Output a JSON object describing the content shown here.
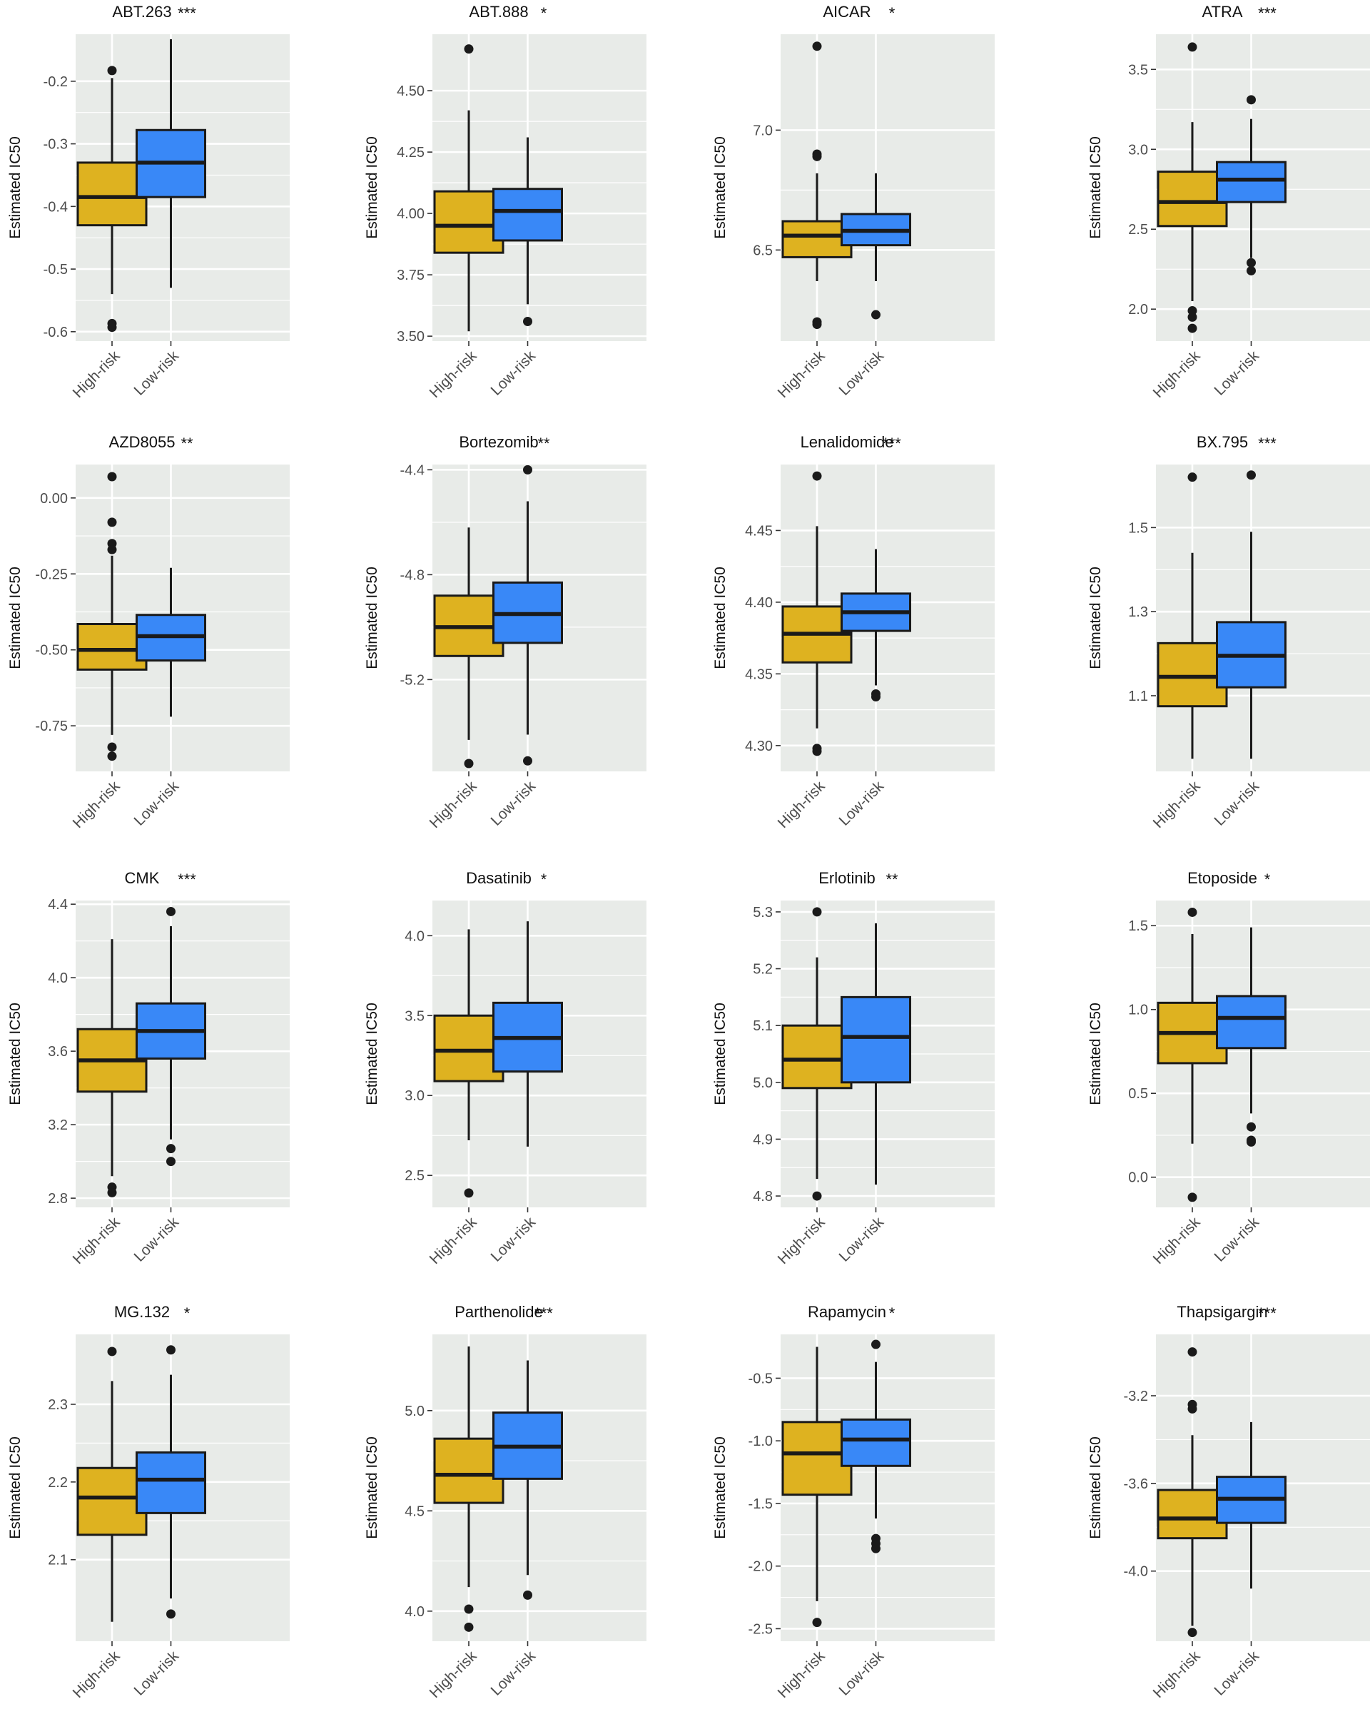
{
  "colors": {
    "high_risk": "#DEB220",
    "low_risk": "#3988F7",
    "panel_bg": "#E8EBE8",
    "grid": "#FFFFFF",
    "ink": "#1A1A1A"
  },
  "chart_data": [
    {
      "type": "box",
      "title": "ABT.263",
      "significance": "***",
      "ylabel": "Estimated IC50",
      "yticks": [
        "-0.2",
        "-0.3",
        "-0.4",
        "-0.5",
        "-0.6"
      ],
      "ylim": [
        -0.615,
        -0.125
      ],
      "categories": [
        "High-risk",
        "Low-risk"
      ],
      "boxes": [
        {
          "name": "High-risk",
          "whisker_low": -0.54,
          "q1": -0.43,
          "median": -0.385,
          "q3": -0.33,
          "whisker_high": -0.195,
          "outliers": [
            -0.183,
            -0.587,
            -0.593
          ]
        },
        {
          "name": "Low-risk",
          "whisker_low": -0.53,
          "q1": -0.385,
          "median": -0.33,
          "q3": -0.278,
          "whisker_high": -0.133,
          "outliers": []
        }
      ]
    },
    {
      "type": "box",
      "title": "ABT.888",
      "significance": "*",
      "ylabel": "Estimated IC50",
      "yticks": [
        "4.50",
        "4.25",
        "4.00",
        "3.75",
        "3.50"
      ],
      "ylim": [
        3.48,
        4.73
      ],
      "categories": [
        "High-risk",
        "Low-risk"
      ],
      "boxes": [
        {
          "name": "High-risk",
          "whisker_low": 3.52,
          "q1": 3.84,
          "median": 3.95,
          "q3": 4.09,
          "whisker_high": 4.42,
          "outliers": [
            4.67
          ]
        },
        {
          "name": "Low-risk",
          "whisker_low": 3.63,
          "q1": 3.89,
          "median": 4.01,
          "q3": 4.1,
          "whisker_high": 4.31,
          "outliers": [
            3.56
          ]
        }
      ]
    },
    {
      "type": "box",
      "title": "AICAR",
      "significance": "*",
      "ylabel": "Estimated IC50",
      "yticks": [
        "7.0",
        "6.5"
      ],
      "ylim": [
        6.12,
        7.4
      ],
      "categories": [
        "High-risk",
        "Low-risk"
      ],
      "boxes": [
        {
          "name": "High-risk",
          "whisker_low": 6.37,
          "q1": 6.47,
          "median": 6.56,
          "q3": 6.62,
          "whisker_high": 6.82,
          "outliers": [
            7.35,
            6.9,
            6.89,
            6.2,
            6.19
          ]
        },
        {
          "name": "Low-risk",
          "whisker_low": 6.37,
          "q1": 6.52,
          "median": 6.58,
          "q3": 6.65,
          "whisker_high": 6.82,
          "outliers": [
            6.23
          ]
        }
      ]
    },
    {
      "type": "box",
      "title": "ATRA",
      "significance": "***",
      "ylabel": "Estimated IC50",
      "yticks": [
        "3.5",
        "3.0",
        "2.5",
        "2.0"
      ],
      "ylim": [
        1.8,
        3.72
      ],
      "categories": [
        "High-risk",
        "Low-risk"
      ],
      "boxes": [
        {
          "name": "High-risk",
          "whisker_low": 2.05,
          "q1": 2.52,
          "median": 2.67,
          "q3": 2.86,
          "whisker_high": 3.17,
          "outliers": [
            3.64,
            1.99,
            1.95,
            1.88
          ]
        },
        {
          "name": "Low-risk",
          "whisker_low": 2.32,
          "q1": 2.67,
          "median": 2.81,
          "q3": 2.92,
          "whisker_high": 3.19,
          "outliers": [
            3.31,
            2.29,
            2.24
          ]
        }
      ]
    },
    {
      "type": "box",
      "title": "AZD8055",
      "significance": "**",
      "ylabel": "Estimated IC50",
      "yticks": [
        "0.00",
        "-0.25",
        "-0.50",
        "-0.75"
      ],
      "ylim": [
        -0.9,
        0.11
      ],
      "categories": [
        "High-risk",
        "Low-risk"
      ],
      "boxes": [
        {
          "name": "High-risk",
          "whisker_low": -0.78,
          "q1": -0.565,
          "median": -0.5,
          "q3": -0.415,
          "whisker_high": -0.19,
          "outliers": [
            0.07,
            -0.08,
            -0.15,
            -0.17,
            -0.82,
            -0.85
          ]
        },
        {
          "name": "Low-risk",
          "whisker_low": -0.72,
          "q1": -0.535,
          "median": -0.455,
          "q3": -0.385,
          "whisker_high": -0.23,
          "outliers": []
        }
      ]
    },
    {
      "type": "box",
      "title": "Bortezomib",
      "significance": "**",
      "ylabel": "Estimated IC50",
      "yticks": [
        "-4.4",
        "-4.8",
        "-5.2"
      ],
      "ylim": [
        -5.55,
        -4.38
      ],
      "categories": [
        "High-risk",
        "Low-risk"
      ],
      "boxes": [
        {
          "name": "High-risk",
          "whisker_low": -5.43,
          "q1": -5.11,
          "median": -5.0,
          "q3": -4.88,
          "whisker_high": -4.62,
          "outliers": [
            -5.52
          ]
        },
        {
          "name": "Low-risk",
          "whisker_low": -5.41,
          "q1": -5.06,
          "median": -4.95,
          "q3": -4.83,
          "whisker_high": -4.52,
          "outliers": [
            -4.4,
            -5.51
          ]
        }
      ]
    },
    {
      "type": "box",
      "title": "Lenalidomide",
      "significance": "***",
      "ylabel": "Estimated IC50",
      "yticks": [
        "4.45",
        "4.40",
        "4.35",
        "4.30"
      ],
      "ylim": [
        4.282,
        4.496
      ],
      "categories": [
        "High-risk",
        "Low-risk"
      ],
      "boxes": [
        {
          "name": "High-risk",
          "whisker_low": 4.312,
          "q1": 4.358,
          "median": 4.378,
          "q3": 4.397,
          "whisker_high": 4.453,
          "outliers": [
            4.488,
            4.298,
            4.296
          ]
        },
        {
          "name": "Low-risk",
          "whisker_low": 4.342,
          "q1": 4.38,
          "median": 4.393,
          "q3": 4.406,
          "whisker_high": 4.437,
          "outliers": [
            4.336,
            4.334
          ]
        }
      ]
    },
    {
      "type": "box",
      "title": "BX.795",
      "significance": "***",
      "ylabel": "Estimated IC50",
      "yticks": [
        "1.5",
        "1.3",
        "1.1"
      ],
      "ylim": [
        0.92,
        1.65
      ],
      "categories": [
        "High-risk",
        "Low-risk"
      ],
      "boxes": [
        {
          "name": "High-risk",
          "whisker_low": 0.95,
          "q1": 1.075,
          "median": 1.145,
          "q3": 1.225,
          "whisker_high": 1.44,
          "outliers": [
            1.62
          ]
        },
        {
          "name": "Low-risk",
          "whisker_low": 0.95,
          "q1": 1.12,
          "median": 1.195,
          "q3": 1.275,
          "whisker_high": 1.49,
          "outliers": [
            1.625
          ]
        }
      ]
    },
    {
      "type": "box",
      "title": "CMK",
      "significance": "***",
      "ylabel": "Estimated IC50",
      "yticks": [
        "4.4",
        "4.0",
        "3.6",
        "3.2",
        "2.8"
      ],
      "ylim": [
        2.75,
        4.42
      ],
      "categories": [
        "High-risk",
        "Low-risk"
      ],
      "boxes": [
        {
          "name": "High-risk",
          "whisker_low": 2.92,
          "q1": 3.38,
          "median": 3.55,
          "q3": 3.72,
          "whisker_high": 4.21,
          "outliers": [
            2.86,
            2.83
          ]
        },
        {
          "name": "Low-risk",
          "whisker_low": 3.12,
          "q1": 3.56,
          "median": 3.71,
          "q3": 3.86,
          "whisker_high": 4.28,
          "outliers": [
            4.36,
            3.07,
            3.0
          ]
        }
      ]
    },
    {
      "type": "box",
      "title": "Dasatinib",
      "significance": "*",
      "ylabel": "Estimated IC50",
      "yticks": [
        "4.0",
        "3.5",
        "3.0",
        "2.5"
      ],
      "ylim": [
        2.3,
        4.22
      ],
      "categories": [
        "High-risk",
        "Low-risk"
      ],
      "boxes": [
        {
          "name": "High-risk",
          "whisker_low": 2.72,
          "q1": 3.09,
          "median": 3.28,
          "q3": 3.5,
          "whisker_high": 4.04,
          "outliers": [
            2.39
          ]
        },
        {
          "name": "Low-risk",
          "whisker_low": 2.68,
          "q1": 3.15,
          "median": 3.36,
          "q3": 3.58,
          "whisker_high": 4.09,
          "outliers": []
        }
      ]
    },
    {
      "type": "box",
      "title": "Erlotinib",
      "significance": "**",
      "ylabel": "Estimated IC50",
      "yticks": [
        "5.3",
        "5.2",
        "5.1",
        "5.0",
        "4.9",
        "4.8"
      ],
      "ylim": [
        4.78,
        5.32
      ],
      "categories": [
        "High-risk",
        "Low-risk"
      ],
      "boxes": [
        {
          "name": "High-risk",
          "whisker_low": 4.83,
          "q1": 4.99,
          "median": 5.04,
          "q3": 5.1,
          "whisker_high": 5.22,
          "outliers": [
            5.3,
            4.8
          ]
        },
        {
          "name": "Low-risk",
          "whisker_low": 4.82,
          "q1": 5.0,
          "median": 5.08,
          "q3": 5.15,
          "whisker_high": 5.28,
          "outliers": []
        }
      ]
    },
    {
      "type": "box",
      "title": "Etoposide",
      "significance": "*",
      "ylabel": "Estimated IC50",
      "yticks": [
        "1.5",
        "1.0",
        "0.5",
        "0.0"
      ],
      "ylim": [
        -0.18,
        1.65
      ],
      "categories": [
        "High-risk",
        "Low-risk"
      ],
      "boxes": [
        {
          "name": "High-risk",
          "whisker_low": 0.2,
          "q1": 0.68,
          "median": 0.86,
          "q3": 1.04,
          "whisker_high": 1.45,
          "outliers": [
            1.58,
            -0.12
          ]
        },
        {
          "name": "Low-risk",
          "whisker_low": 0.38,
          "q1": 0.77,
          "median": 0.95,
          "q3": 1.08,
          "whisker_high": 1.49,
          "outliers": [
            0.3,
            0.22,
            0.21
          ]
        }
      ]
    },
    {
      "type": "box",
      "title": "MG.132",
      "significance": "*",
      "ylabel": "Estimated IC50",
      "yticks": [
        "2.3",
        "2.2",
        "2.1"
      ],
      "ylim": [
        1.995,
        2.39
      ],
      "categories": [
        "High-risk",
        "Low-risk"
      ],
      "boxes": [
        {
          "name": "High-risk",
          "whisker_low": 2.02,
          "q1": 2.132,
          "median": 2.18,
          "q3": 2.218,
          "whisker_high": 2.33,
          "outliers": [
            2.368
          ]
        },
        {
          "name": "Low-risk",
          "whisker_low": 2.05,
          "q1": 2.16,
          "median": 2.203,
          "q3": 2.238,
          "whisker_high": 2.338,
          "outliers": [
            2.37,
            2.03
          ]
        }
      ]
    },
    {
      "type": "box",
      "title": "Parthenolide",
      "significance": "***",
      "ylabel": "Estimated IC50",
      "yticks": [
        "5.0",
        "4.5",
        "4.0"
      ],
      "ylim": [
        3.85,
        5.38
      ],
      "categories": [
        "High-risk",
        "Low-risk"
      ],
      "boxes": [
        {
          "name": "High-risk",
          "whisker_low": 4.12,
          "q1": 4.54,
          "median": 4.68,
          "q3": 4.86,
          "whisker_high": 5.32,
          "outliers": [
            4.01,
            3.92
          ]
        },
        {
          "name": "Low-risk",
          "whisker_low": 4.18,
          "q1": 4.66,
          "median": 4.82,
          "q3": 4.99,
          "whisker_high": 5.25,
          "outliers": [
            4.08
          ]
        }
      ]
    },
    {
      "type": "box",
      "title": "Rapamycin",
      "significance": "*",
      "ylabel": "Estimated IC50",
      "yticks": [
        "-0.5",
        "-1.0",
        "-1.5",
        "-2.0",
        "-2.5"
      ],
      "ylim": [
        -2.6,
        -0.15
      ],
      "categories": [
        "High-risk",
        "Low-risk"
      ],
      "boxes": [
        {
          "name": "High-risk",
          "whisker_low": -2.28,
          "q1": -1.43,
          "median": -1.1,
          "q3": -0.85,
          "whisker_high": -0.25,
          "outliers": [
            -2.45
          ]
        },
        {
          "name": "Low-risk",
          "whisker_low": -1.62,
          "q1": -1.2,
          "median": -0.99,
          "q3": -0.83,
          "whisker_high": -0.37,
          "outliers": [
            -0.23,
            -1.78,
            -1.82,
            -1.86
          ]
        }
      ]
    },
    {
      "type": "box",
      "title": "Thapsigargin",
      "significance": "***",
      "ylabel": "Estimated IC50",
      "yticks": [
        "-3.2",
        "-3.6",
        "-4.0"
      ],
      "ylim": [
        -4.32,
        -2.92
      ],
      "categories": [
        "High-risk",
        "Low-risk"
      ],
      "boxes": [
        {
          "name": "High-risk",
          "whisker_low": -4.25,
          "q1": -3.85,
          "median": -3.76,
          "q3": -3.63,
          "whisker_high": -3.38,
          "outliers": [
            -3.0,
            -3.24,
            -3.26,
            -4.28
          ]
        },
        {
          "name": "Low-risk",
          "whisker_low": -4.08,
          "q1": -3.78,
          "median": -3.67,
          "q3": -3.57,
          "whisker_high": -3.32,
          "outliers": []
        }
      ]
    }
  ]
}
